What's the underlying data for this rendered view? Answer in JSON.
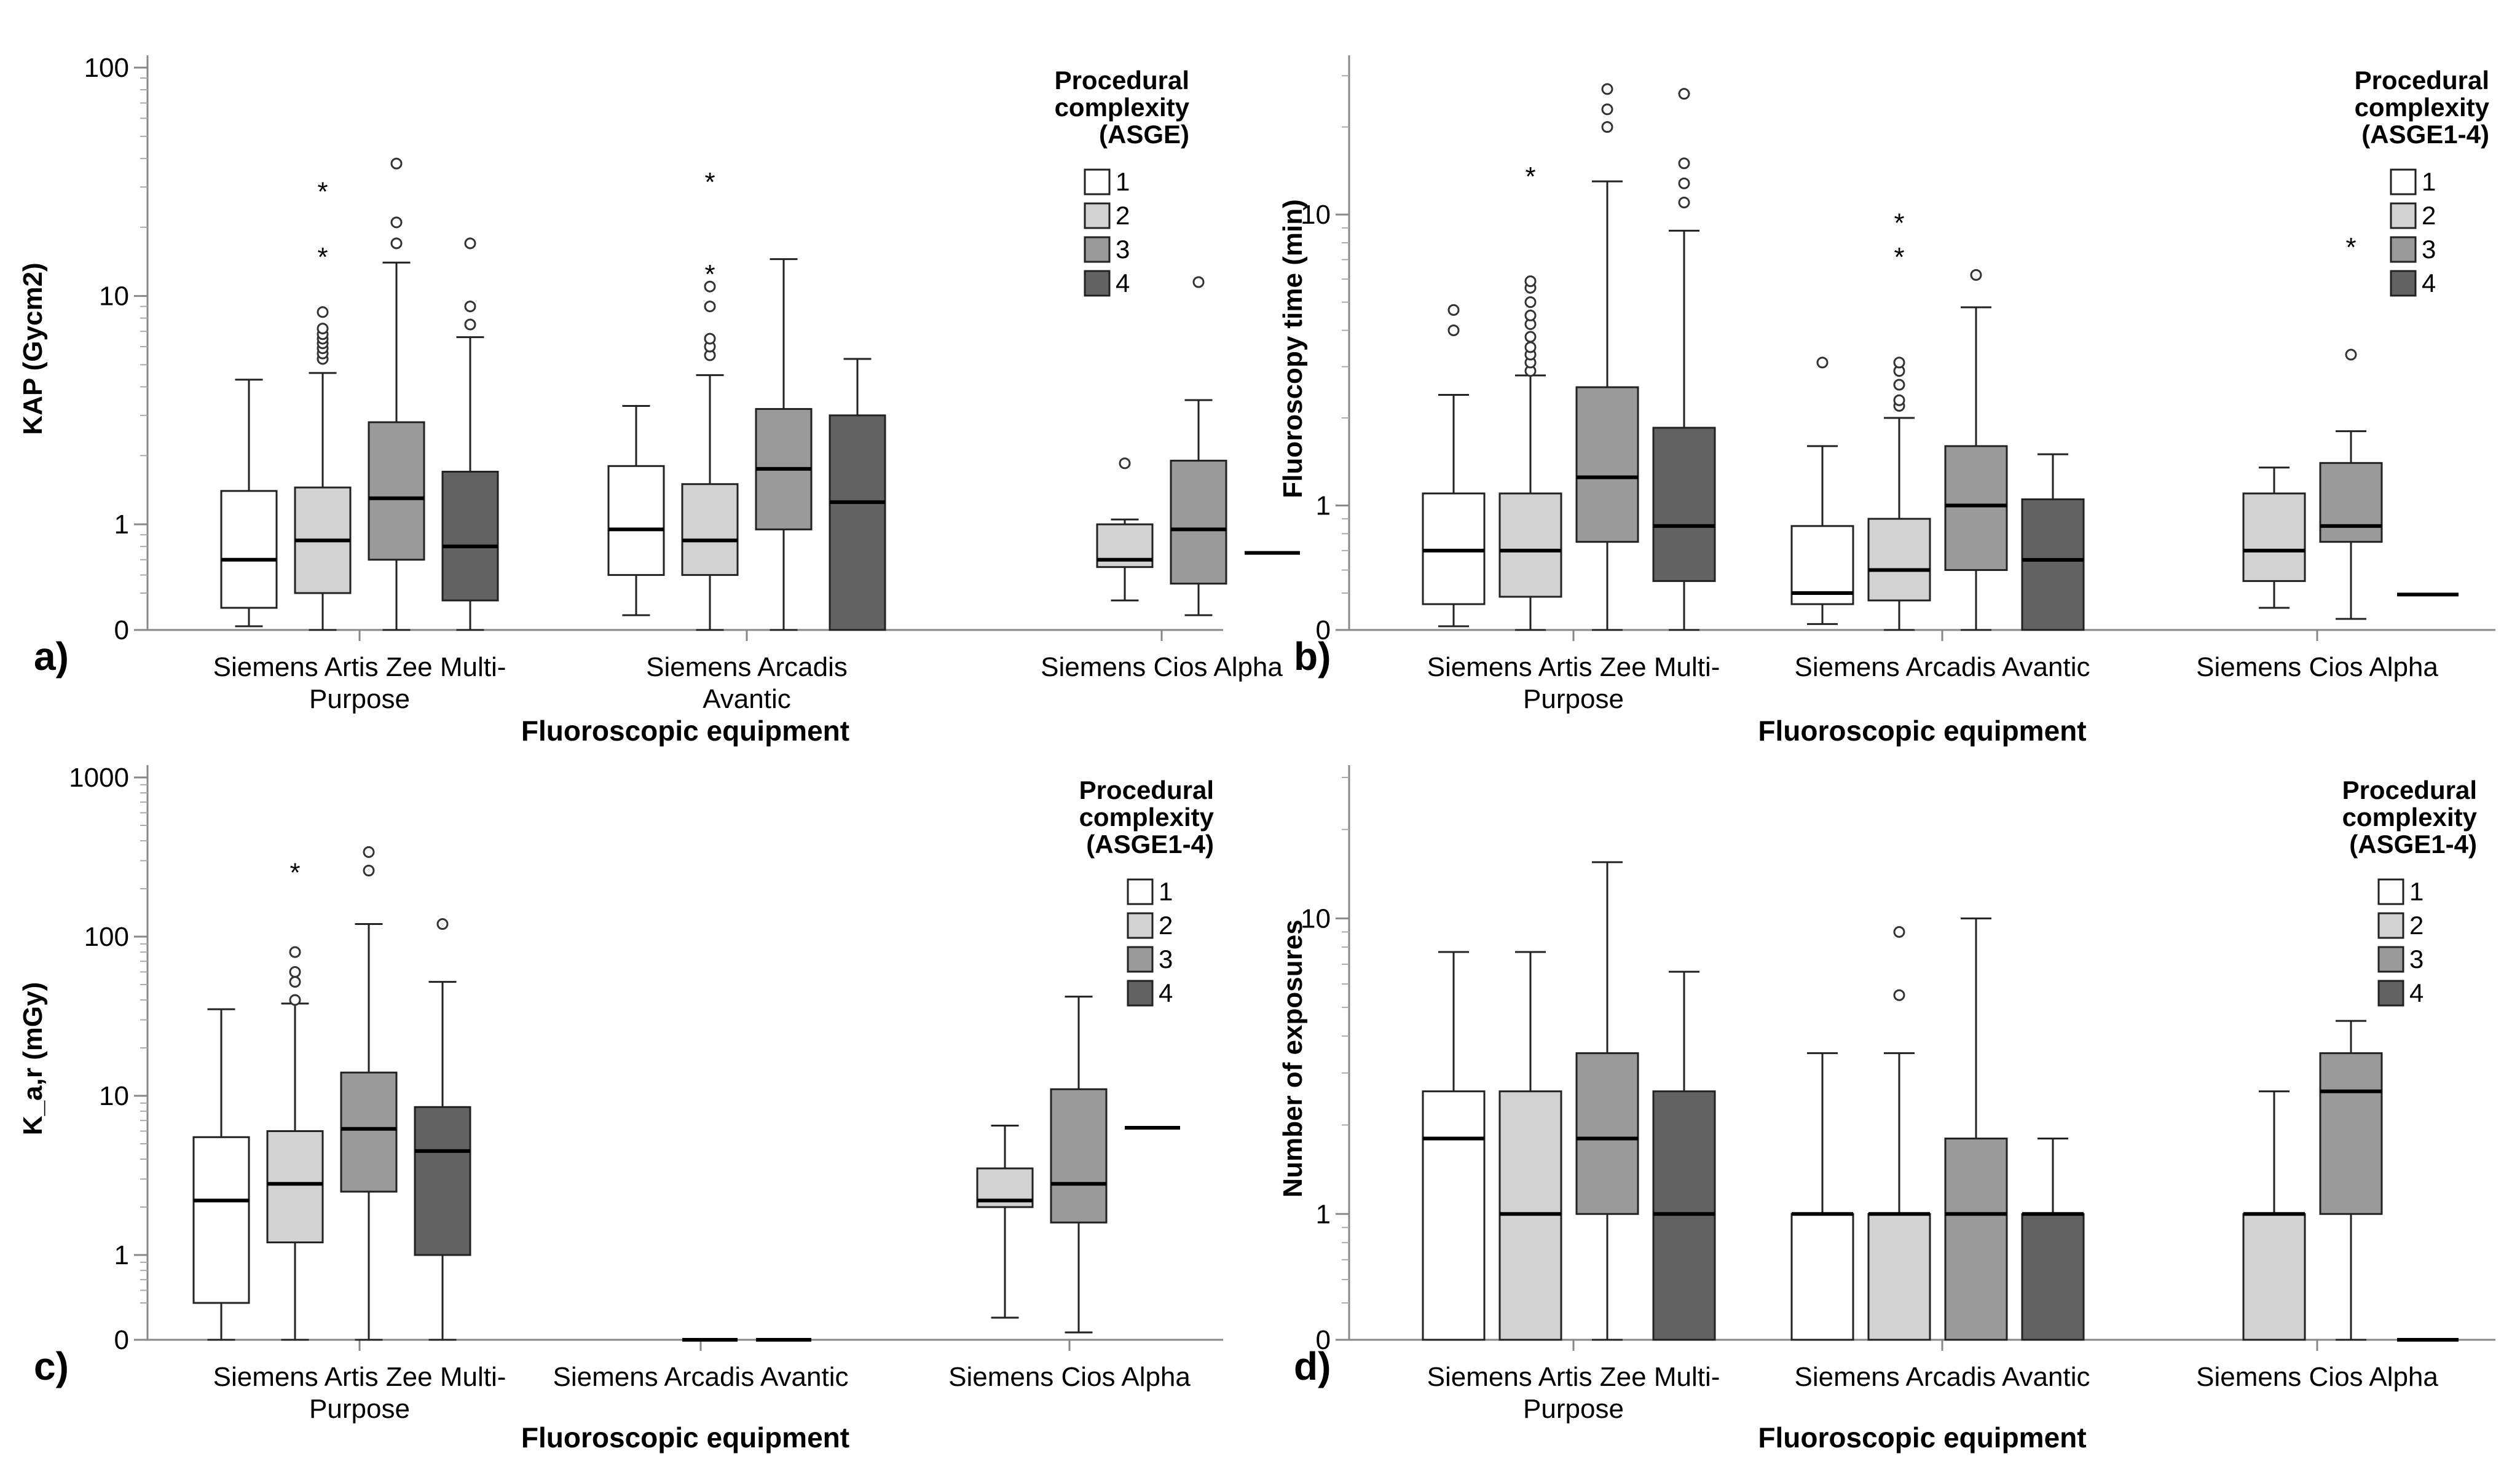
{
  "figure": {
    "legend_title_lines_default": [
      "Procedural",
      "complexity"
    ],
    "category_colors": {
      "1": "#ffffff",
      "2": "#d2d2d2",
      "3": "#9a9a9a",
      "4": "#626262"
    },
    "box_stroke": "#222222",
    "median_color": "#000000"
  },
  "chart_data": [
    {
      "id": "a",
      "type": "boxplot",
      "panel_label": "a)",
      "xlabel": "Fluoroscopic equipment",
      "ylabel": "KAP (Gycm2)",
      "yscale": "log-with-zero",
      "ylim": [
        0,
        100
      ],
      "yticks": [
        {
          "v": 0,
          "label": "0"
        },
        {
          "v": 1,
          "label": "1"
        },
        {
          "v": 10,
          "label": "10"
        },
        {
          "v": 100,
          "label": "100"
        }
      ],
      "legend": {
        "title": [
          "Procedural",
          "complexity",
          "(ASGE)"
        ],
        "entries": [
          "1",
          "2",
          "3",
          "4"
        ]
      },
      "categories": [
        {
          "label": [
            "Siemens Artis Zee Multi-",
            "Purpose"
          ],
          "boxes": [
            {
              "cat": "1",
              "whisker_low": 0.05,
              "q1": 0.3,
              "median": 0.7,
              "q3": 1.4,
              "whisker_high": 4.3,
              "outliers": [],
              "extremes": []
            },
            {
              "cat": "2",
              "whisker_low": 0.0,
              "q1": 0.5,
              "median": 0.85,
              "q3": 1.45,
              "whisker_high": 4.6,
              "outliers": [
                5.3,
                5.6,
                5.9,
                6.2,
                6.5,
                6.8,
                7.2,
                8.5
              ],
              "extremes": [
                15.5,
                30.0
              ]
            },
            {
              "cat": "3",
              "whisker_low": 0.0,
              "q1": 0.7,
              "median": 1.3,
              "q3": 2.8,
              "whisker_high": 14.0,
              "outliers": [
                17.0,
                21.0,
                38.0
              ],
              "extremes": []
            },
            {
              "cat": "4",
              "whisker_low": 0.0,
              "q1": 0.4,
              "median": 0.8,
              "q3": 1.7,
              "whisker_high": 6.6,
              "outliers": [
                7.5,
                9.0,
                17.0
              ],
              "extremes": []
            }
          ]
        },
        {
          "label": [
            "Siemens Arcadis",
            "Avantic"
          ],
          "boxes": [
            {
              "cat": "1",
              "whisker_low": 0.2,
              "q1": 0.6,
              "median": 0.95,
              "q3": 1.8,
              "whisker_high": 3.3,
              "outliers": [],
              "extremes": []
            },
            {
              "cat": "2",
              "whisker_low": 0.0,
              "q1": 0.6,
              "median": 0.85,
              "q3": 1.5,
              "whisker_high": 4.5,
              "outliers": [
                5.5,
                6.0,
                6.5,
                9.0,
                11.0
              ],
              "extremes": [
                13.0,
                33.0
              ]
            },
            {
              "cat": "3",
              "whisker_low": 0.0,
              "q1": 0.95,
              "median": 1.75,
              "q3": 3.2,
              "whisker_high": 14.5,
              "outliers": [],
              "extremes": []
            },
            {
              "cat": "4",
              "whisker_low": 0.0,
              "q1": 0.0,
              "median": 1.25,
              "q3": 3.0,
              "whisker_high": 5.3,
              "outliers": [],
              "extremes": []
            }
          ]
        },
        {
          "label": [
            "Siemens Cios Alpha"
          ],
          "boxes": [
            {
              "cat": "2",
              "whisker_low": 0.4,
              "q1": 0.65,
              "median": 0.7,
              "q3": 1.0,
              "whisker_high": 1.05,
              "outliers": [
                1.85
              ],
              "extremes": []
            },
            {
              "cat": "3",
              "whisker_low": 0.2,
              "q1": 0.55,
              "median": 0.95,
              "q3": 1.9,
              "whisker_high": 3.5,
              "outliers": [
                11.5
              ],
              "extremes": []
            },
            {
              "cat": "4",
              "single": 0.75
            }
          ]
        }
      ]
    },
    {
      "id": "b",
      "type": "boxplot",
      "panel_label": "b)",
      "xlabel": "Fluoroscopic equipment",
      "ylabel": "Fluoroscopy time (min)",
      "yscale": "log-with-zero",
      "ylim": [
        0,
        32
      ],
      "yticks": [
        {
          "v": 0,
          "label": "0"
        },
        {
          "v": 1,
          "label": "1"
        },
        {
          "v": 10,
          "label": "10"
        }
      ],
      "legend": {
        "title": [
          "Procedural",
          "complexity",
          "(ASGE1-4)"
        ],
        "entries": [
          "1",
          "2",
          "3",
          "4"
        ]
      },
      "categories": [
        {
          "label": [
            "Siemens Artis Zee Multi-",
            "Purpose"
          ],
          "boxes": [
            {
              "cat": "1",
              "whisker_low": 0.05,
              "q1": 0.35,
              "median": 0.7,
              "q3": 1.1,
              "whisker_high": 2.4,
              "outliers": [
                4.0,
                4.7
              ],
              "extremes": []
            },
            {
              "cat": "2",
              "whisker_low": 0.0,
              "q1": 0.45,
              "median": 0.7,
              "q3": 1.1,
              "whisker_high": 2.8,
              "outliers": [
                2.9,
                3.1,
                3.3,
                3.5,
                3.8,
                4.2,
                4.5,
                5.0,
                5.6,
                5.9
              ],
              "extremes": [
                14.0
              ]
            },
            {
              "cat": "3",
              "whisker_low": 0.0,
              "q1": 0.75,
              "median": 1.25,
              "q3": 2.55,
              "whisker_high": 13.0,
              "outliers": [
                20.0,
                23.0,
                27.0
              ],
              "extremes": []
            },
            {
              "cat": "4",
              "whisker_low": 0.0,
              "q1": 0.55,
              "median": 0.85,
              "q3": 1.85,
              "whisker_high": 8.8,
              "outliers": [
                11.0,
                12.8,
                15.0,
                26.0
              ],
              "extremes": []
            }
          ]
        },
        {
          "label": [
            "Siemens Arcadis Avantic"
          ],
          "boxes": [
            {
              "cat": "1",
              "whisker_low": 0.08,
              "q1": 0.35,
              "median": 0.5,
              "q3": 0.85,
              "whisker_high": 1.6,
              "outliers": [
                3.1
              ],
              "extremes": []
            },
            {
              "cat": "2",
              "whisker_low": 0.0,
              "q1": 0.4,
              "median": 0.6,
              "q3": 0.9,
              "whisker_high": 2.0,
              "outliers": [
                2.2,
                2.3,
                2.6,
                2.9,
                3.1
              ],
              "extremes": [
                7.4,
                9.7
              ]
            },
            {
              "cat": "3",
              "whisker_low": 0.0,
              "q1": 0.6,
              "median": 1.0,
              "q3": 1.6,
              "whisker_high": 4.8,
              "outliers": [
                6.2
              ],
              "extremes": []
            },
            {
              "cat": "4",
              "whisker_low": 0.0,
              "q1": 0.0,
              "median": 0.65,
              "q3": 1.05,
              "whisker_high": 1.5,
              "outliers": [],
              "extremes": []
            }
          ]
        },
        {
          "label": [
            "Siemens Cios Alpha"
          ],
          "boxes": [
            {
              "cat": "2",
              "whisker_low": 0.3,
              "q1": 0.55,
              "median": 0.7,
              "q3": 1.1,
              "whisker_high": 1.35,
              "outliers": [],
              "extremes": []
            },
            {
              "cat": "3",
              "whisker_low": 0.15,
              "q1": 0.75,
              "median": 0.85,
              "q3": 1.4,
              "whisker_high": 1.8,
              "outliers": [
                3.3
              ],
              "extremes": [
                8.0
              ]
            },
            {
              "cat": "4",
              "single": 0.48
            }
          ]
        }
      ]
    },
    {
      "id": "c",
      "type": "boxplot",
      "panel_label": "c)",
      "xlabel": "Fluoroscopic equipment",
      "ylabel": "K_a,r (mGy)",
      "yscale": "log-with-zero",
      "ylim": [
        0,
        1000
      ],
      "yticks": [
        {
          "v": 0,
          "label": "0"
        },
        {
          "v": 1,
          "label": "1"
        },
        {
          "v": 10,
          "label": "10"
        },
        {
          "v": 100,
          "label": "100"
        },
        {
          "v": 1000,
          "label": "1000"
        }
      ],
      "legend": {
        "title": [
          "Procedural",
          "complexity",
          "(ASGE1-4)"
        ],
        "entries": [
          "1",
          "2",
          "3",
          "4"
        ]
      },
      "categories": [
        {
          "label": [
            "Siemens Artis Zee Multi-",
            "Purpose"
          ],
          "boxes": [
            {
              "cat": "1",
              "whisker_low": 0.0,
              "q1": 0.5,
              "median": 2.2,
              "q3": 5.5,
              "whisker_high": 35.0,
              "outliers": [],
              "extremes": []
            },
            {
              "cat": "2",
              "whisker_low": 0.0,
              "q1": 1.2,
              "median": 2.8,
              "q3": 6.0,
              "whisker_high": 38.0,
              "outliers": [
                40.0,
                52.0,
                60.0,
                80.0
              ],
              "extremes": [
                270.0
              ]
            },
            {
              "cat": "3",
              "whisker_low": 0.0,
              "q1": 2.5,
              "median": 6.2,
              "q3": 14.0,
              "whisker_high": 120.0,
              "outliers": [
                260.0,
                340.0
              ],
              "extremes": []
            },
            {
              "cat": "4",
              "whisker_low": 0.0,
              "q1": 1.0,
              "median": 4.5,
              "q3": 8.5,
              "whisker_high": 52.0,
              "outliers": [
                120.0
              ],
              "extremes": []
            }
          ]
        },
        {
          "label": [
            "Siemens Arcadis Avantic"
          ],
          "boxes": [
            {
              "cat": "3",
              "single": 0.0
            },
            {
              "cat": "4",
              "single": 0.0
            }
          ]
        },
        {
          "label": [
            "Siemens Cios Alpha"
          ],
          "boxes": [
            {
              "cat": "2",
              "whisker_low": 0.3,
              "q1": 2.0,
              "median": 2.2,
              "q3": 3.5,
              "whisker_high": 6.5,
              "outliers": [],
              "extremes": []
            },
            {
              "cat": "3",
              "whisker_low": 0.1,
              "q1": 1.6,
              "median": 2.8,
              "q3": 11.0,
              "whisker_high": 42.0,
              "outliers": [],
              "extremes": []
            },
            {
              "cat": "4",
              "single": 6.3
            }
          ]
        }
      ]
    },
    {
      "id": "d",
      "type": "boxplot",
      "panel_label": "d)",
      "xlabel": "Fluoroscopic equipment",
      "ylabel": "Number of exposures",
      "yscale": "log-with-zero",
      "ylim": [
        0,
        30
      ],
      "yticks": [
        {
          "v": 0,
          "label": "0"
        },
        {
          "v": 1,
          "label": "1"
        },
        {
          "v": 10,
          "label": "10"
        }
      ],
      "legend": {
        "title": [
          "Procedural",
          "complexity",
          "(ASGE1-4)"
        ],
        "entries": [
          "1",
          "2",
          "3",
          "4"
        ]
      },
      "categories": [
        {
          "label": [
            "Siemens Artis Zee Multi-",
            "Purpose"
          ],
          "boxes": [
            {
              "cat": "1",
              "whisker_low": 0.0,
              "q1": 0.0,
              "median": 1.8,
              "q3": 2.6,
              "whisker_high": 7.7,
              "outliers": [],
              "extremes": []
            },
            {
              "cat": "2",
              "whisker_low": 0.0,
              "q1": 0.0,
              "median": 1.0,
              "q3": 2.6,
              "whisker_high": 7.7,
              "outliers": [],
              "extremes": []
            },
            {
              "cat": "3",
              "whisker_low": 0.0,
              "q1": 1.0,
              "median": 1.8,
              "q3": 3.5,
              "whisker_high": 15.5,
              "outliers": [],
              "extremes": []
            },
            {
              "cat": "4",
              "whisker_low": 0.0,
              "q1": 0.0,
              "median": 1.0,
              "q3": 2.6,
              "whisker_high": 6.6,
              "outliers": [],
              "extremes": []
            }
          ]
        },
        {
          "label": [
            "Siemens Arcadis Avantic"
          ],
          "boxes": [
            {
              "cat": "1",
              "whisker_low": 0.0,
              "q1": 0.0,
              "median": 1.0,
              "q3": 1.0,
              "whisker_high": 3.5,
              "outliers": [],
              "extremes": []
            },
            {
              "cat": "2",
              "whisker_low": 0.0,
              "q1": 0.0,
              "median": 1.0,
              "q3": 1.0,
              "whisker_high": 3.5,
              "outliers": [
                5.5,
                9.0
              ],
              "extremes": []
            },
            {
              "cat": "3",
              "whisker_low": 0.0,
              "q1": 0.0,
              "median": 1.0,
              "q3": 1.8,
              "whisker_high": 10.0,
              "outliers": [],
              "extremes": []
            },
            {
              "cat": "4",
              "whisker_low": 0.0,
              "q1": 0.0,
              "median": 1.0,
              "q3": 1.0,
              "whisker_high": 1.8,
              "outliers": [],
              "extremes": []
            }
          ]
        },
        {
          "label": [
            "Siemens Cios Alpha"
          ],
          "boxes": [
            {
              "cat": "2",
              "whisker_low": 0.0,
              "q1": 0.0,
              "median": 1.0,
              "q3": 1.0,
              "whisker_high": 2.6,
              "outliers": [],
              "extremes": []
            },
            {
              "cat": "3",
              "whisker_low": 0.0,
              "q1": 1.0,
              "median": 2.6,
              "q3": 3.5,
              "whisker_high": 4.5,
              "outliers": [],
              "extremes": []
            },
            {
              "cat": "4",
              "single": 0.0
            }
          ]
        }
      ]
    }
  ]
}
